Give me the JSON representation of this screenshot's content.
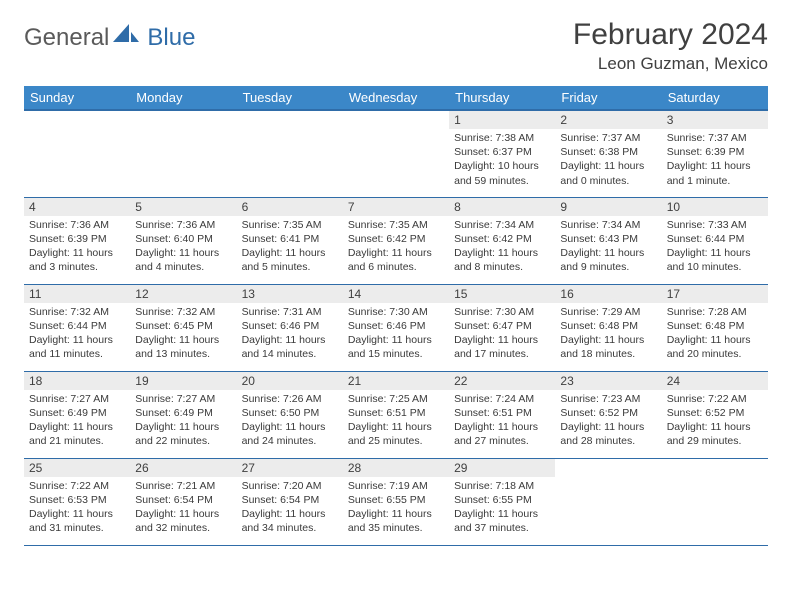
{
  "logo": {
    "general": "General",
    "blue": "Blue"
  },
  "title": "February 2024",
  "location": "Leon Guzman, Mexico",
  "colors": {
    "header_bg": "#3b87c8",
    "header_border": "#2f6ca8",
    "daynum_bg": "#ececec",
    "text": "#3a3a3a",
    "logo_gray": "#5a5a5a",
    "logo_blue": "#2f6ca8",
    "page_bg": "#ffffff"
  },
  "weekdays": [
    "Sunday",
    "Monday",
    "Tuesday",
    "Wednesday",
    "Thursday",
    "Friday",
    "Saturday"
  ],
  "weeks": [
    [
      null,
      null,
      null,
      null,
      {
        "n": "1",
        "sr": "Sunrise: 7:38 AM",
        "ss": "Sunset: 6:37 PM",
        "dl": "Daylight: 10 hours and 59 minutes."
      },
      {
        "n": "2",
        "sr": "Sunrise: 7:37 AM",
        "ss": "Sunset: 6:38 PM",
        "dl": "Daylight: 11 hours and 0 minutes."
      },
      {
        "n": "3",
        "sr": "Sunrise: 7:37 AM",
        "ss": "Sunset: 6:39 PM",
        "dl": "Daylight: 11 hours and 1 minute."
      }
    ],
    [
      {
        "n": "4",
        "sr": "Sunrise: 7:36 AM",
        "ss": "Sunset: 6:39 PM",
        "dl": "Daylight: 11 hours and 3 minutes."
      },
      {
        "n": "5",
        "sr": "Sunrise: 7:36 AM",
        "ss": "Sunset: 6:40 PM",
        "dl": "Daylight: 11 hours and 4 minutes."
      },
      {
        "n": "6",
        "sr": "Sunrise: 7:35 AM",
        "ss": "Sunset: 6:41 PM",
        "dl": "Daylight: 11 hours and 5 minutes."
      },
      {
        "n": "7",
        "sr": "Sunrise: 7:35 AM",
        "ss": "Sunset: 6:42 PM",
        "dl": "Daylight: 11 hours and 6 minutes."
      },
      {
        "n": "8",
        "sr": "Sunrise: 7:34 AM",
        "ss": "Sunset: 6:42 PM",
        "dl": "Daylight: 11 hours and 8 minutes."
      },
      {
        "n": "9",
        "sr": "Sunrise: 7:34 AM",
        "ss": "Sunset: 6:43 PM",
        "dl": "Daylight: 11 hours and 9 minutes."
      },
      {
        "n": "10",
        "sr": "Sunrise: 7:33 AM",
        "ss": "Sunset: 6:44 PM",
        "dl": "Daylight: 11 hours and 10 minutes."
      }
    ],
    [
      {
        "n": "11",
        "sr": "Sunrise: 7:32 AM",
        "ss": "Sunset: 6:44 PM",
        "dl": "Daylight: 11 hours and 11 minutes."
      },
      {
        "n": "12",
        "sr": "Sunrise: 7:32 AM",
        "ss": "Sunset: 6:45 PM",
        "dl": "Daylight: 11 hours and 13 minutes."
      },
      {
        "n": "13",
        "sr": "Sunrise: 7:31 AM",
        "ss": "Sunset: 6:46 PM",
        "dl": "Daylight: 11 hours and 14 minutes."
      },
      {
        "n": "14",
        "sr": "Sunrise: 7:30 AM",
        "ss": "Sunset: 6:46 PM",
        "dl": "Daylight: 11 hours and 15 minutes."
      },
      {
        "n": "15",
        "sr": "Sunrise: 7:30 AM",
        "ss": "Sunset: 6:47 PM",
        "dl": "Daylight: 11 hours and 17 minutes."
      },
      {
        "n": "16",
        "sr": "Sunrise: 7:29 AM",
        "ss": "Sunset: 6:48 PM",
        "dl": "Daylight: 11 hours and 18 minutes."
      },
      {
        "n": "17",
        "sr": "Sunrise: 7:28 AM",
        "ss": "Sunset: 6:48 PM",
        "dl": "Daylight: 11 hours and 20 minutes."
      }
    ],
    [
      {
        "n": "18",
        "sr": "Sunrise: 7:27 AM",
        "ss": "Sunset: 6:49 PM",
        "dl": "Daylight: 11 hours and 21 minutes."
      },
      {
        "n": "19",
        "sr": "Sunrise: 7:27 AM",
        "ss": "Sunset: 6:49 PM",
        "dl": "Daylight: 11 hours and 22 minutes."
      },
      {
        "n": "20",
        "sr": "Sunrise: 7:26 AM",
        "ss": "Sunset: 6:50 PM",
        "dl": "Daylight: 11 hours and 24 minutes."
      },
      {
        "n": "21",
        "sr": "Sunrise: 7:25 AM",
        "ss": "Sunset: 6:51 PM",
        "dl": "Daylight: 11 hours and 25 minutes."
      },
      {
        "n": "22",
        "sr": "Sunrise: 7:24 AM",
        "ss": "Sunset: 6:51 PM",
        "dl": "Daylight: 11 hours and 27 minutes."
      },
      {
        "n": "23",
        "sr": "Sunrise: 7:23 AM",
        "ss": "Sunset: 6:52 PM",
        "dl": "Daylight: 11 hours and 28 minutes."
      },
      {
        "n": "24",
        "sr": "Sunrise: 7:22 AM",
        "ss": "Sunset: 6:52 PM",
        "dl": "Daylight: 11 hours and 29 minutes."
      }
    ],
    [
      {
        "n": "25",
        "sr": "Sunrise: 7:22 AM",
        "ss": "Sunset: 6:53 PM",
        "dl": "Daylight: 11 hours and 31 minutes."
      },
      {
        "n": "26",
        "sr": "Sunrise: 7:21 AM",
        "ss": "Sunset: 6:54 PM",
        "dl": "Daylight: 11 hours and 32 minutes."
      },
      {
        "n": "27",
        "sr": "Sunrise: 7:20 AM",
        "ss": "Sunset: 6:54 PM",
        "dl": "Daylight: 11 hours and 34 minutes."
      },
      {
        "n": "28",
        "sr": "Sunrise: 7:19 AM",
        "ss": "Sunset: 6:55 PM",
        "dl": "Daylight: 11 hours and 35 minutes."
      },
      {
        "n": "29",
        "sr": "Sunrise: 7:18 AM",
        "ss": "Sunset: 6:55 PM",
        "dl": "Daylight: 11 hours and 37 minutes."
      },
      null,
      null
    ]
  ]
}
